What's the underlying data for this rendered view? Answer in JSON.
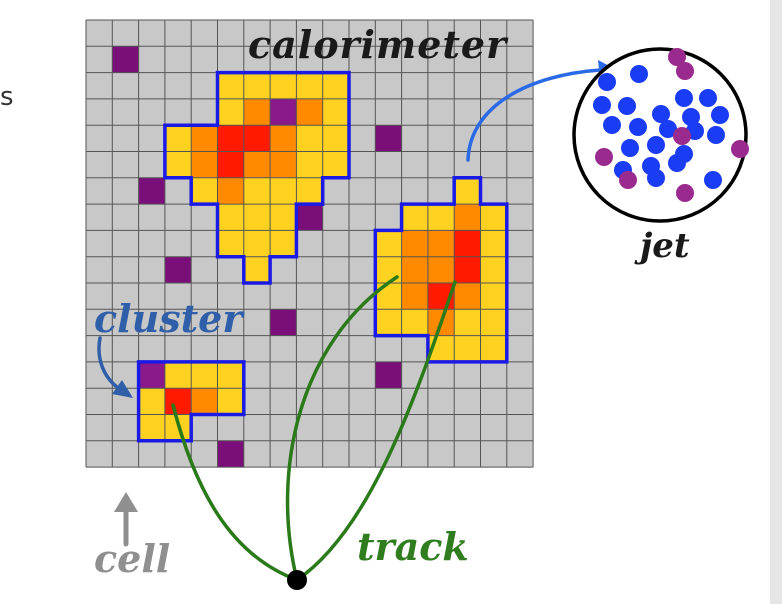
{
  "labels": {
    "partial": "s",
    "calorimeter": "calorimeter",
    "cluster": "cluster",
    "cell": "cell",
    "track": "track",
    "jet": "jet"
  },
  "colors": {
    "cell_empty": "#c8c8c8",
    "grid_line": "#555555",
    "noise": "#7a0f7a",
    "low": "#ffd21f",
    "mid": "#ff8a00",
    "high": "#ff1a00",
    "purple_deposit": "#8a1a8a",
    "cluster_outline": "#1a1ae6",
    "track": "#2a7a1a",
    "jet_blue": "#1a3cf5",
    "jet_purple": "#9a2a8e",
    "arrow_blue": "#2a6ae6",
    "arrow_gray": "#8f8f8f"
  },
  "icons": {
    "vertex": "vertex-dot-icon",
    "jet_arrow": "jet-arrow-icon",
    "cell_arrow": "cell-arrow-icon",
    "cluster_arrow": "cluster-arrow-icon"
  }
}
